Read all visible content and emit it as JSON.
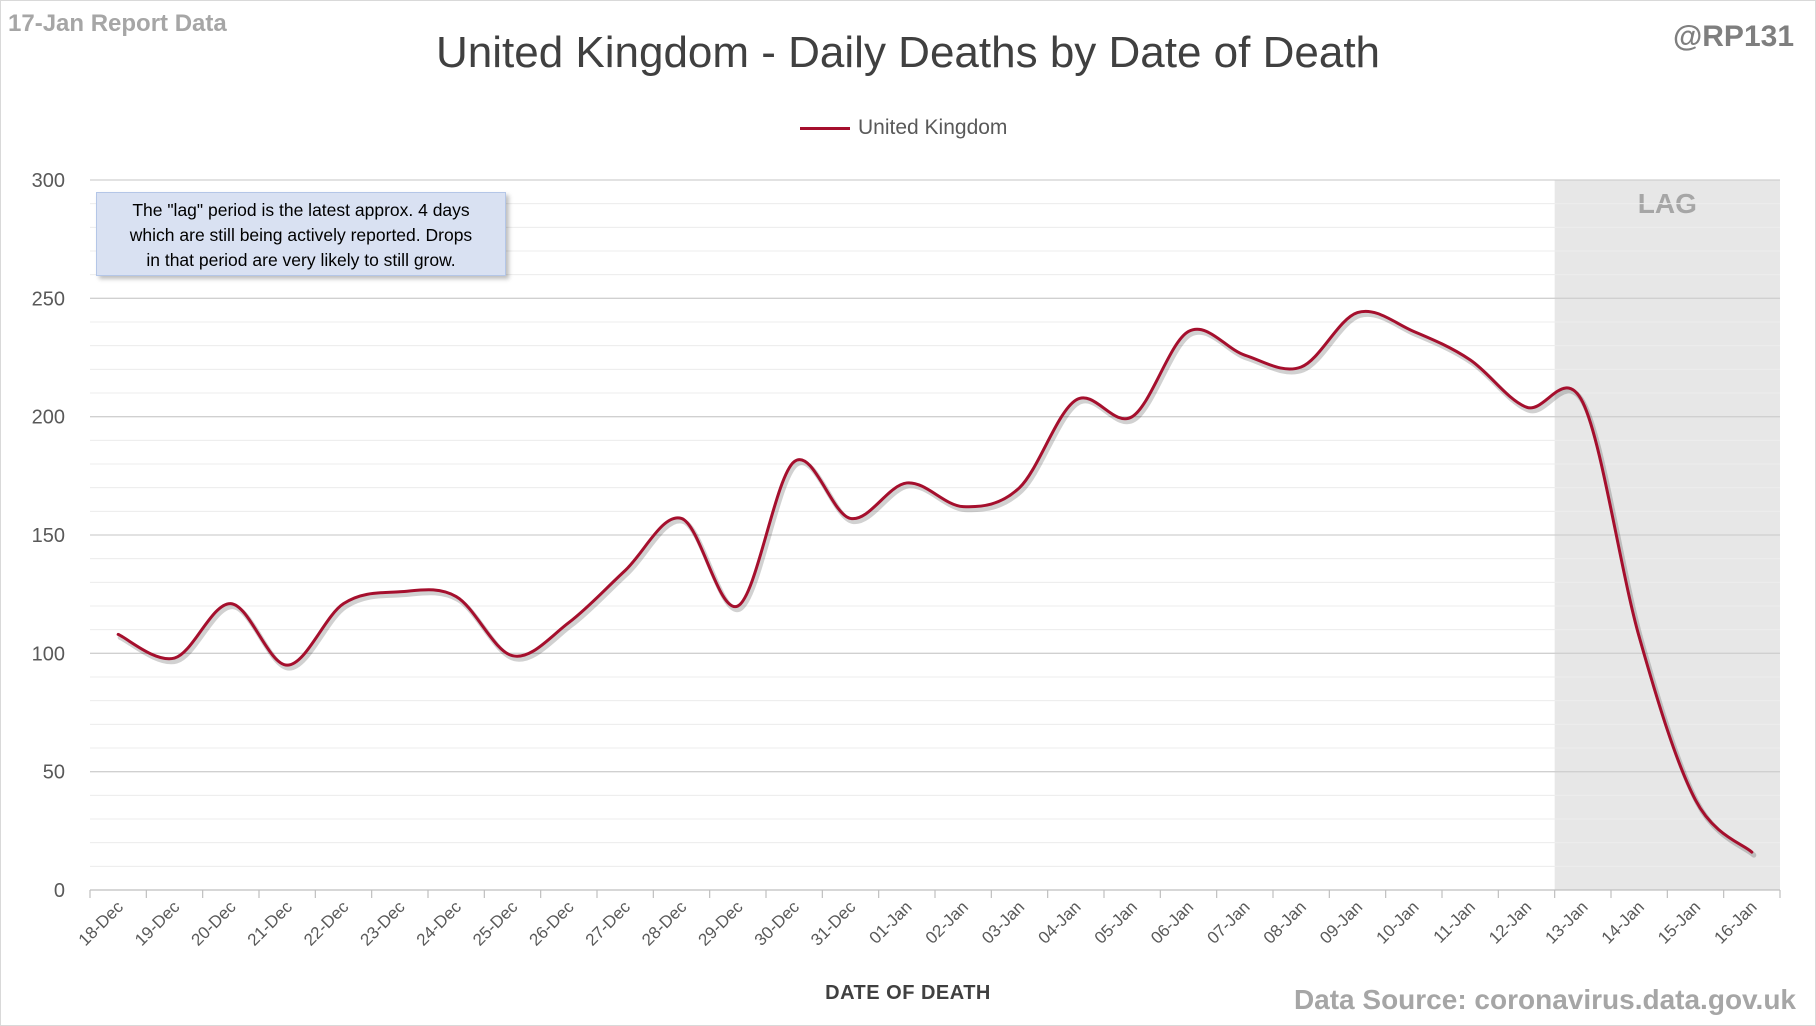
{
  "header": {
    "report_tag": "17-Jan Report Data",
    "handle": "@RP131"
  },
  "footer": {
    "source": "Data Source: coronavirus.data.gov.uk"
  },
  "annotation": {
    "lines": [
      "The \"lag\" period is the latest approx. 4 days",
      "which are still being actively reported.  Drops",
      "in that period are very likely to still grow."
    ]
  },
  "chart_data": {
    "type": "line",
    "title": "United Kingdom - Daily Deaths by Date of Death",
    "xlabel": "DATE OF DEATH",
    "ylabel": "",
    "ylim": [
      0,
      300
    ],
    "yticks": [
      0,
      50,
      100,
      150,
      200,
      250,
      300
    ],
    "grid": true,
    "legend_position": "top-center",
    "categories": [
      "18-Dec",
      "19-Dec",
      "20-Dec",
      "21-Dec",
      "22-Dec",
      "23-Dec",
      "24-Dec",
      "25-Dec",
      "26-Dec",
      "27-Dec",
      "28-Dec",
      "29-Dec",
      "30-Dec",
      "31-Dec",
      "01-Jan",
      "02-Jan",
      "03-Jan",
      "04-Jan",
      "05-Jan",
      "06-Jan",
      "07-Jan",
      "08-Jan",
      "09-Jan",
      "10-Jan",
      "11-Jan",
      "12-Jan",
      "13-Jan",
      "14-Jan",
      "15-Jan",
      "16-Jan"
    ],
    "series": [
      {
        "name": "United Kingdom",
        "color": "#a50f2d",
        "values": [
          108,
          98,
          121,
          95,
          121,
          126,
          124,
          99,
          113,
          135,
          157,
          120,
          181,
          157,
          172,
          162,
          170,
          207,
          200,
          236,
          226,
          221,
          244,
          236,
          224,
          204,
          206,
          107,
          38,
          16
        ]
      }
    ],
    "shaded_region": {
      "label": "LAG",
      "from": "13-Jan",
      "to": "16-Jan",
      "color": "#e7e7e7"
    }
  }
}
